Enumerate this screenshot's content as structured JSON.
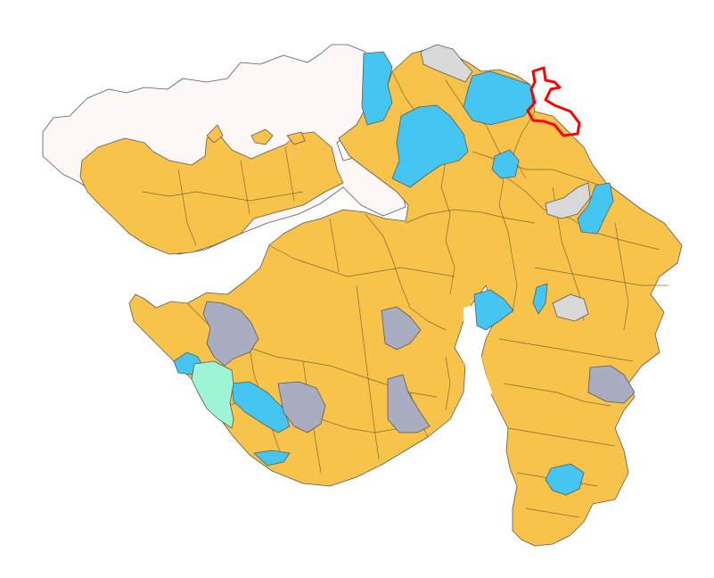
{
  "map": {
    "colors": {
      "background": "#ffffff",
      "desert": "#fdf7f6",
      "party_a": "#f8c34a",
      "party_b": "#45c6f2",
      "party_c": "#a9adbf",
      "vacant": "#d9d9d9",
      "other": "#9ef5d5",
      "highlight": "#ff0000",
      "border": "#5a5a5a"
    }
  }
}
